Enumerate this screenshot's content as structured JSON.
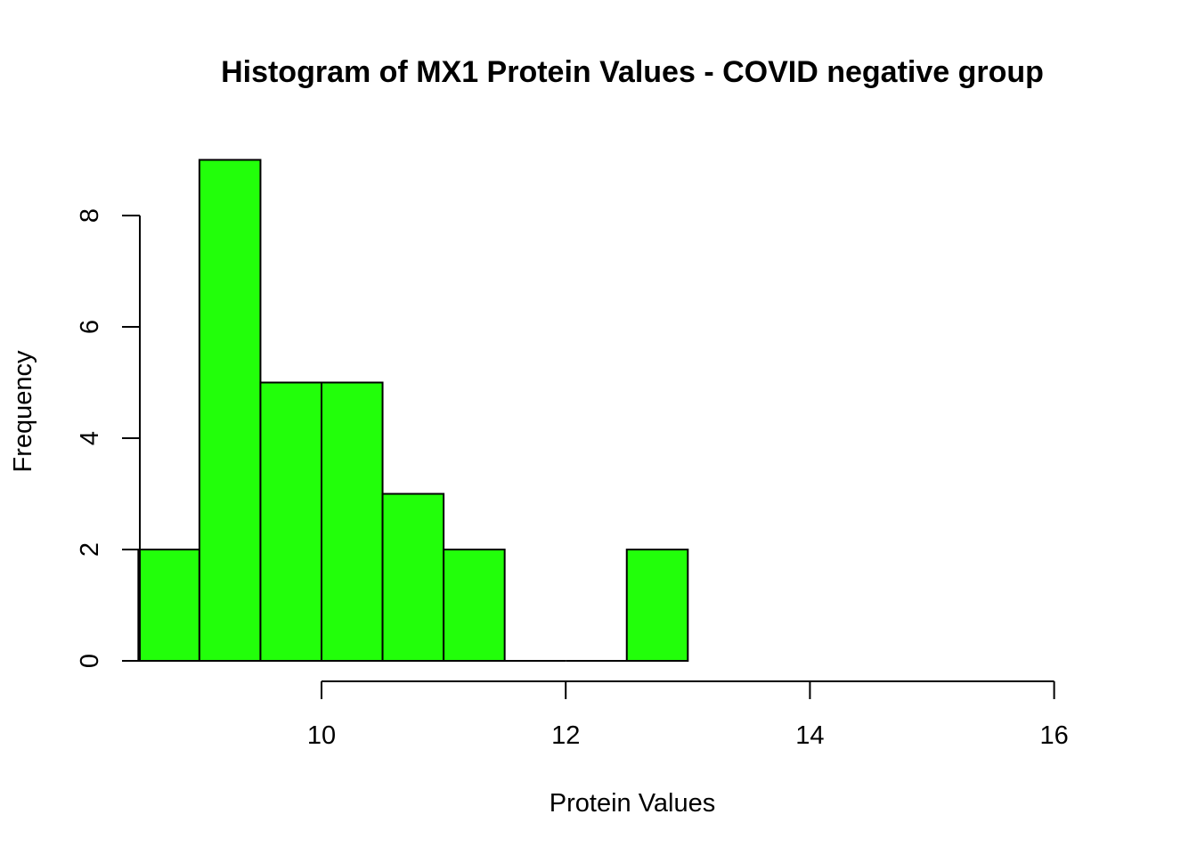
{
  "chart_data": {
    "type": "bar",
    "title": "Histogram of MX1 Protein Values - COVID negative group",
    "xlabel": "Protein Values",
    "ylabel": "Frequency",
    "bar_color": "#22ff0a",
    "bin_edges": [
      8.5,
      9.0,
      9.5,
      10.0,
      10.5,
      11.0,
      11.5,
      12.0,
      12.5,
      13.0
    ],
    "values": [
      2,
      9,
      5,
      5,
      3,
      2,
      0,
      0,
      2
    ],
    "xlim": [
      8.5,
      16.0
    ],
    "ylim": [
      0,
      9
    ],
    "x_ticks": [
      10,
      12,
      14,
      16
    ],
    "x_tick_labels": [
      "10",
      "12",
      "14",
      "16"
    ],
    "y_ticks": [
      0,
      2,
      4,
      6,
      8
    ],
    "y_tick_labels": [
      "0",
      "2",
      "4",
      "6",
      "8"
    ],
    "grid": false,
    "legend": "none"
  }
}
